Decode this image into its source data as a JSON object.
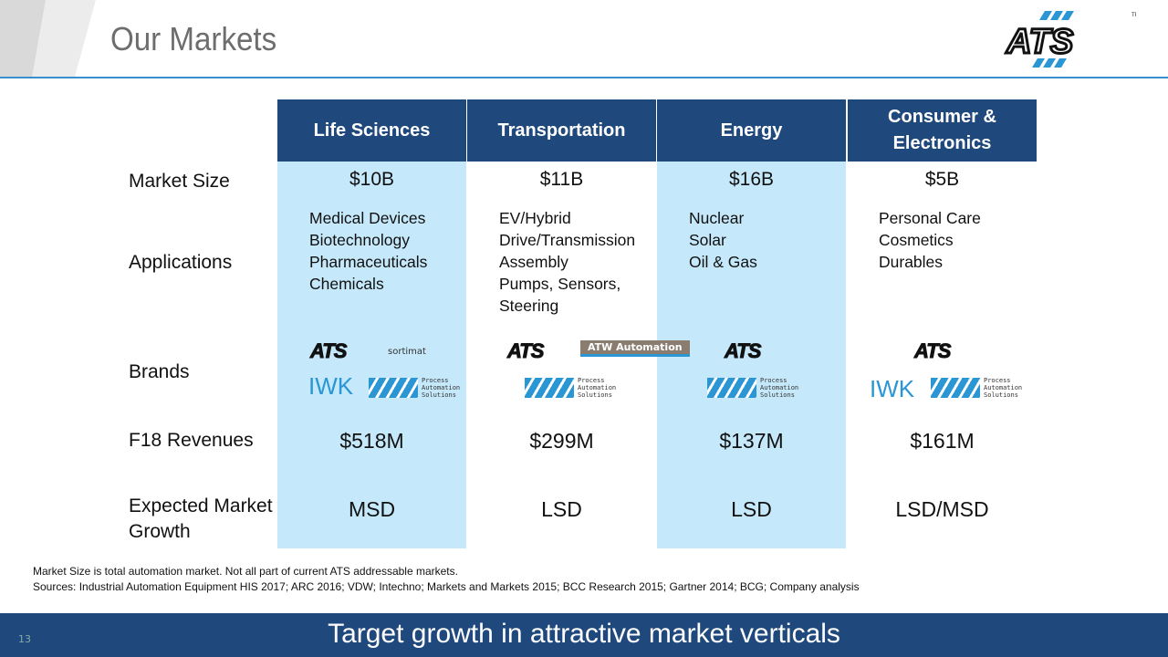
{
  "header": {
    "title": "Our Markets",
    "logo_text": "ATS",
    "logo_tm": "TM"
  },
  "table": {
    "columns": [
      "Life Sciences",
      "Transportation",
      "Energy",
      "Consumer & Electronics"
    ],
    "row_labels": {
      "market_size": "Market Size",
      "applications": "Applications",
      "brands": "Brands",
      "revenues": "F18 Revenues",
      "growth": "Expected Market Growth"
    },
    "market_size": [
      "$10B",
      "$11B",
      "$16B",
      "$5B"
    ],
    "applications": [
      [
        "Medical Devices",
        "Biotechnology",
        "Pharmaceuticals",
        "Chemicals"
      ],
      [
        "EV/Hybrid",
        "Drive/Transmission",
        "Assembly",
        "Pumps, Sensors,",
        "Steering"
      ],
      [
        "Nuclear",
        "Solar",
        "Oil & Gas"
      ],
      [
        "Personal Care",
        "Cosmetics",
        "Durables"
      ]
    ],
    "brands": [
      [
        "ATS",
        "sortimat",
        "IWK",
        "Process Automation Solutions"
      ],
      [
        "ATS",
        "ATW Automation",
        "Process Automation Solutions"
      ],
      [
        "ATS",
        "Process Automation Solutions"
      ],
      [
        "ATS",
        "IWK",
        "Process Automation Solutions"
      ]
    ],
    "revenues": [
      "$518M",
      "$299M",
      "$137M",
      "$161M"
    ],
    "growth": [
      "MSD",
      "LSD",
      "LSD",
      "LSD/MSD"
    ]
  },
  "notes": [
    "Market Size is total automation market.  Not all part of current ATS addressable markets.",
    "Sources: Industrial Automation Equipment HIS 2017; ARC 2016; VDW; Intechno; Markets and Markets 2015; BCC Research 2015; Gartner 2014; BCG; Company analysis"
  ],
  "footer": {
    "text": "Target growth in attractive market verticals",
    "page_number": "13"
  },
  "colors": {
    "header_blue": "#1f497d",
    "light_blue": "#c5e9fb",
    "accent": "#2a96d4"
  }
}
